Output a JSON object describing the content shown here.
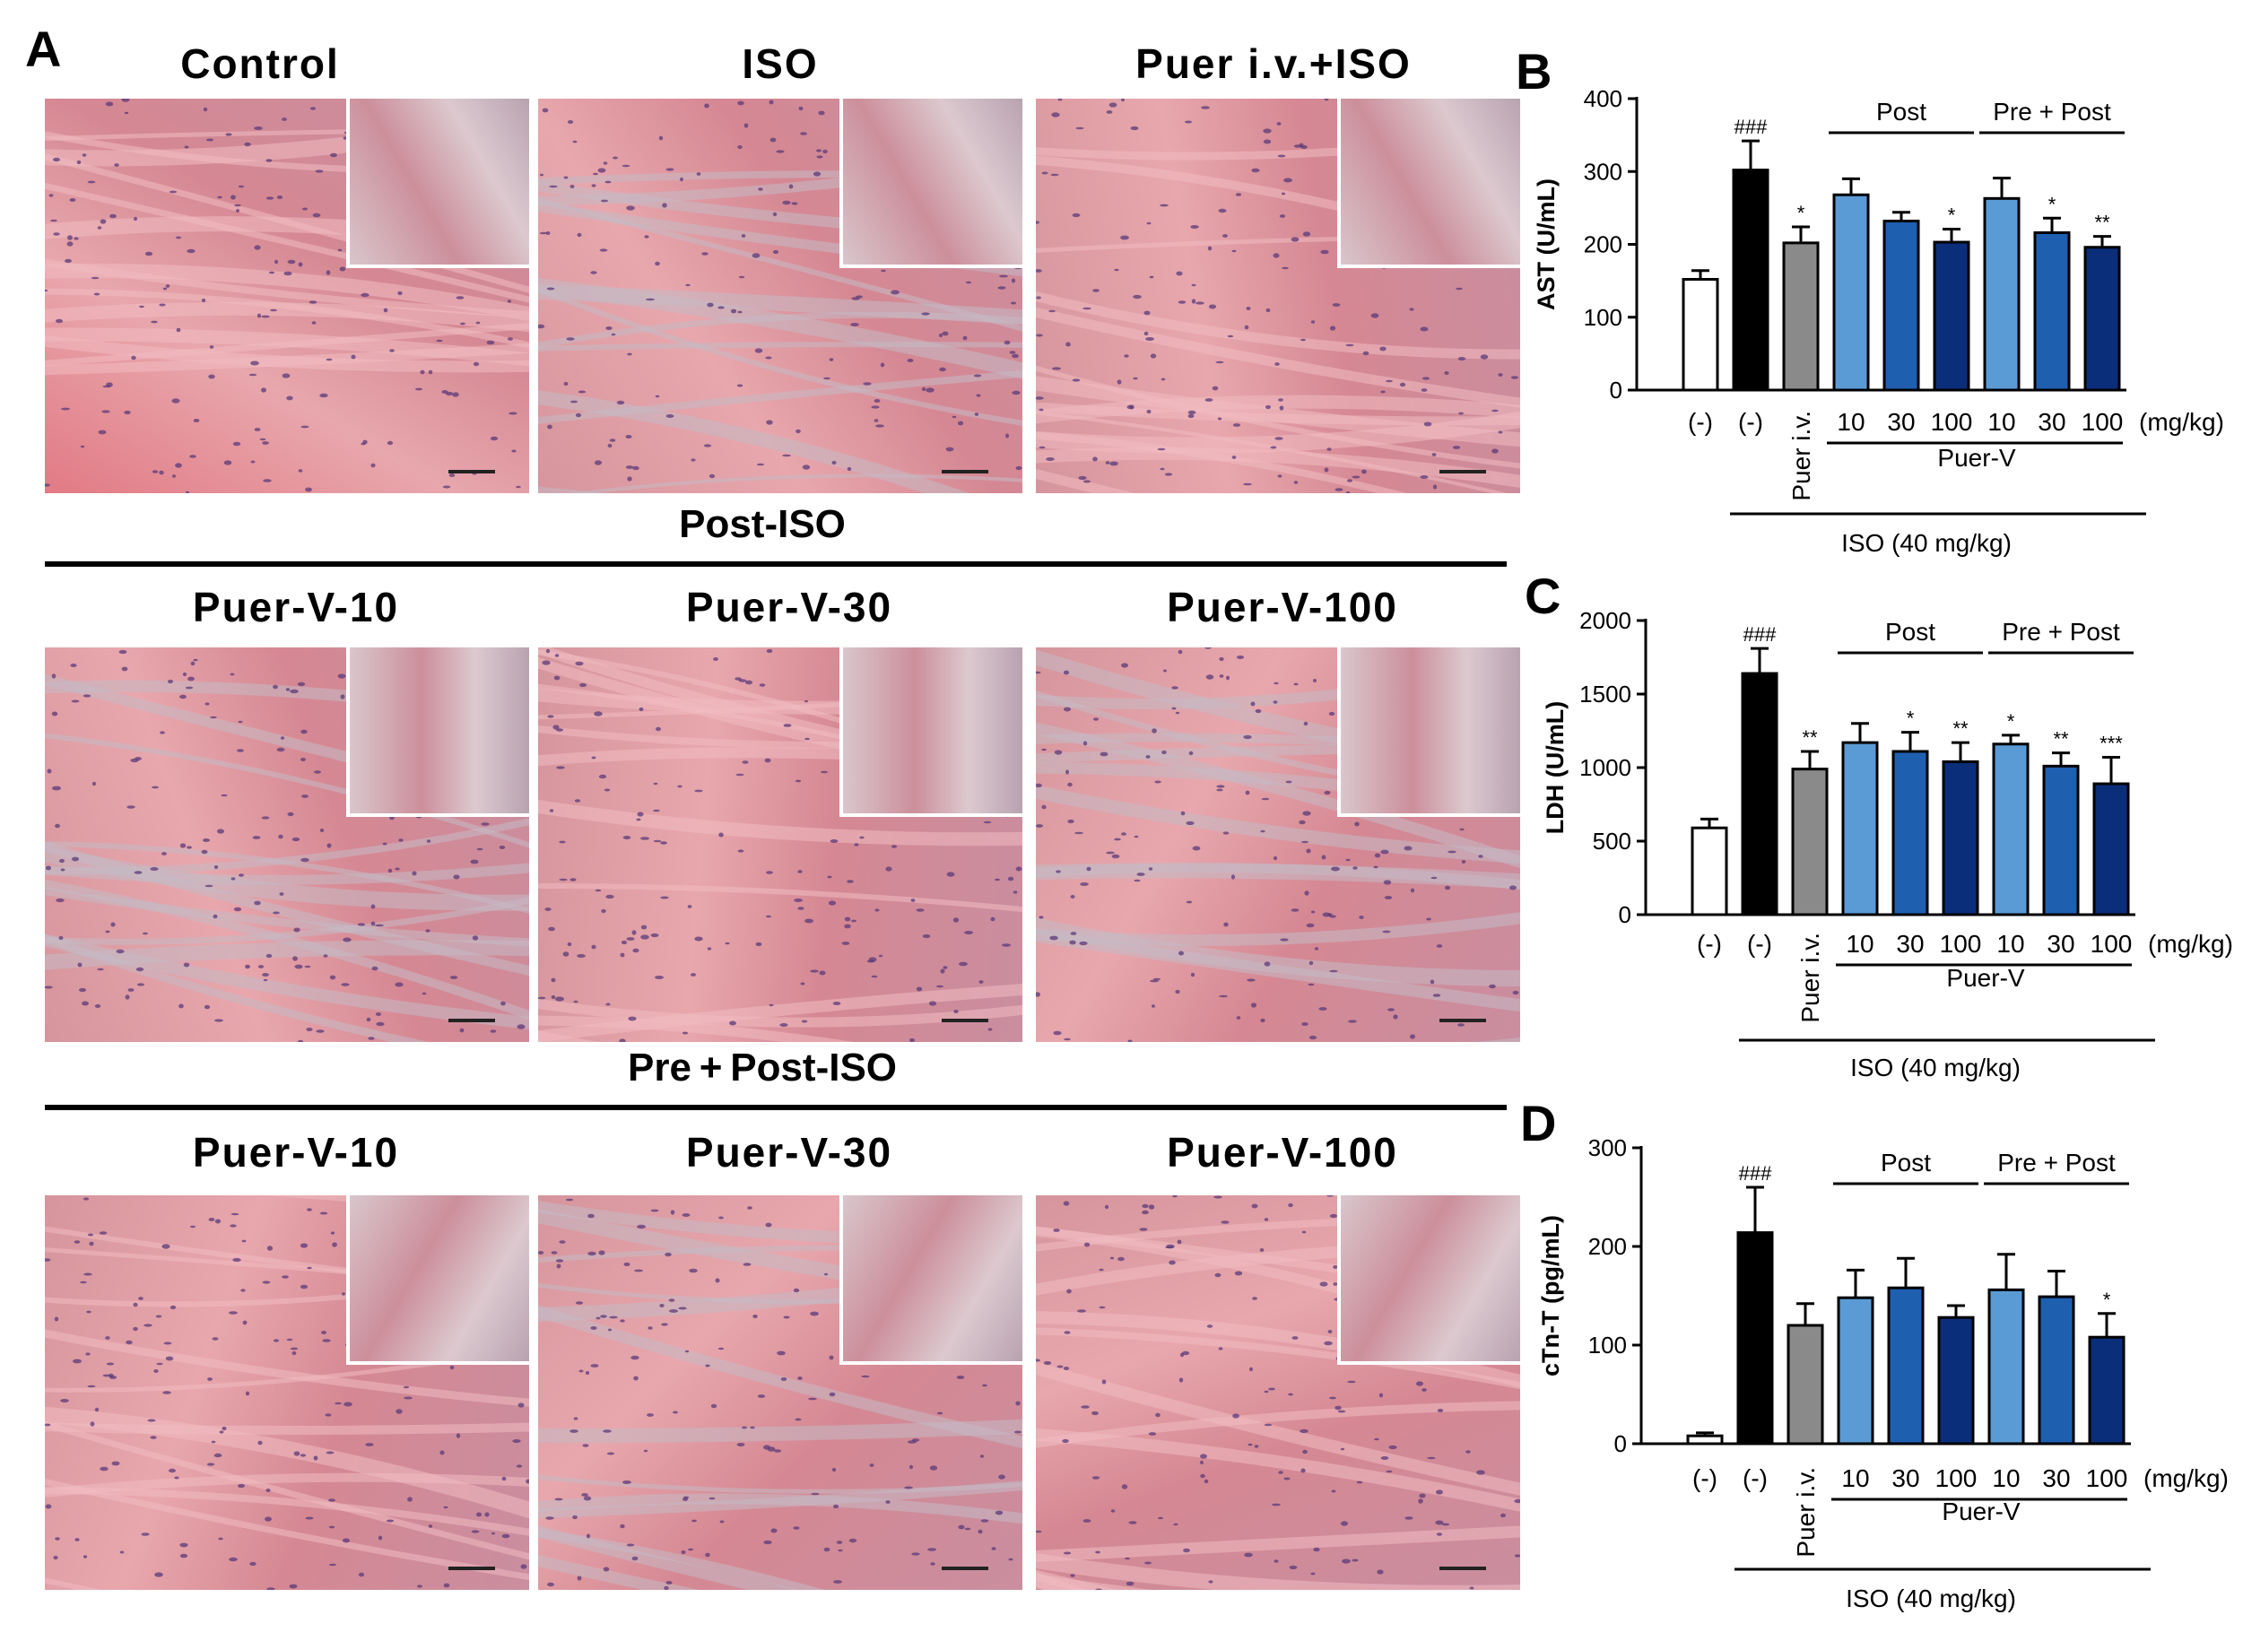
{
  "panel_a": {
    "letter": "A",
    "row1": [
      "Control",
      "ISO",
      "Puer i.v.+ISO"
    ],
    "section2": "Post-ISO",
    "row2": [
      "Puer-V-10",
      "Puer-V-30",
      "Puer-V-100"
    ],
    "section3": "Pre + Post-ISO",
    "row3": [
      "Puer-V-10",
      "Puer-V-30",
      "Puer-V-100"
    ]
  },
  "x_labels": {
    "neg1": "(-)",
    "neg2": "(-)",
    "puer_iv": "Puer i.v.",
    "doses": [
      "10",
      "30",
      "100",
      "10",
      "30",
      "100"
    ],
    "unit": "(mg/kg)",
    "puer_v": "Puer-V",
    "iso": "ISO (40 mg/kg)",
    "post": "Post",
    "prepost": "Pre + Post"
  },
  "colors": {
    "white": "#ffffff",
    "black": "#000000",
    "grey": "#8a8a8a",
    "light_blue": "#5b9bd5",
    "mid_blue": "#1f5fb0",
    "dark_blue": "#0b2e7a"
  },
  "chart_data": [
    {
      "letter": "B",
      "type": "bar",
      "ylabel": "AST (U/mL)",
      "ylim": [
        0,
        400
      ],
      "yticks": [
        "0",
        "100",
        "200",
        "300",
        "400"
      ],
      "values": [
        152,
        302,
        202,
        268,
        232,
        203,
        263,
        216,
        196
      ],
      "errors": [
        12,
        40,
        22,
        22,
        12,
        18,
        28,
        20,
        15
      ],
      "sig": [
        "",
        "###",
        "*",
        "",
        "",
        "*",
        "",
        "*",
        "**"
      ]
    },
    {
      "letter": "C",
      "type": "bar",
      "ylabel": "LDH (U/mL)",
      "ylim": [
        0,
        2000
      ],
      "yticks": [
        "0",
        "500",
        "1000",
        "1500",
        "2000"
      ],
      "values": [
        590,
        1640,
        990,
        1170,
        1110,
        1040,
        1160,
        1010,
        890
      ],
      "errors": [
        60,
        170,
        120,
        130,
        130,
        130,
        60,
        90,
        180
      ],
      "sig": [
        "",
        "###",
        "**",
        "",
        "*",
        "**",
        "*",
        "**",
        "***"
      ]
    },
    {
      "letter": "D",
      "type": "bar",
      "ylabel": "cTn-T (pg/mL)",
      "ylim": [
        0,
        300
      ],
      "yticks": [
        "0",
        "100",
        "200",
        "300"
      ],
      "values": [
        8,
        214,
        120,
        148,
        158,
        128,
        156,
        149,
        108
      ],
      "errors": [
        3,
        46,
        22,
        28,
        30,
        12,
        36,
        26,
        24
      ],
      "sig": [
        "",
        "###",
        "",
        "",
        "",
        "",
        "",
        "",
        "*"
      ]
    }
  ]
}
